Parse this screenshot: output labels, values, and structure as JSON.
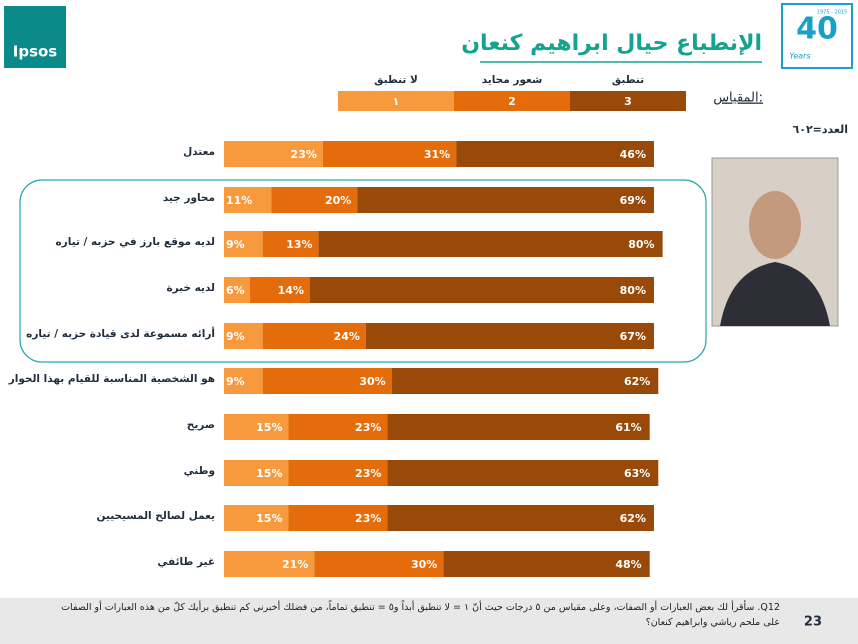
{
  "chart_data": {
    "type": "stacked-bar-horizontal",
    "title": "الإنطباع حيال ابراهيم كنعان",
    "scale_label": "المقياس:",
    "sample": "العدد=٦٠٢",
    "categories": [
      "معتدل",
      "محاور جيد",
      "لديه موقع بارز في حزبه / تياره",
      "لديه خبرة",
      "أرائه مسموعة لدى قيادة حزبه / تياره",
      "هو الشخصية المناسبة للقيام بهذا الحوار",
      "صريح",
      "وطني",
      "يعمل لصالح المسيحيين",
      "غير طائفي"
    ],
    "series": [
      {
        "name": "لا تنطبق",
        "code": "١",
        "color": "#f79a3e",
        "values": [
          23,
          11,
          9,
          6,
          9,
          9,
          15,
          15,
          15,
          21
        ],
        "value_labels": [
          "23%",
          "11%",
          "9%",
          "6%",
          "9%",
          "9%",
          "15%",
          "15%",
          "15%",
          "21%"
        ]
      },
      {
        "name": "شعور محايد",
        "code": 2,
        "color": "#e46c0a",
        "values": [
          31,
          20,
          13,
          14,
          24,
          30,
          23,
          23,
          23,
          30
        ],
        "value_labels": [
          "31%",
          "20%",
          "13%",
          "14%",
          "24%",
          "30%",
          "23%",
          "23%",
          "23%",
          "30%"
        ]
      },
      {
        "name": "تنطبق",
        "code": 3,
        "color": "#9a4a08",
        "values": [
          46,
          69,
          80,
          80,
          67,
          62,
          61,
          63,
          62,
          48
        ],
        "value_labels": [
          "46%",
          "69%",
          "80%",
          "80%",
          "67%",
          "62%",
          "61%",
          "63%",
          "62%",
          "48%"
        ]
      }
    ]
  },
  "footer": {
    "question": "Q12. سأقرأ لك بعض العبارات أو الصفات، وعلى مقياس من ٥ درجات حيث أنّ ١ = لا تنطبق أبداً و٥ = تنطبق تماماً، من فضلك أخبرني كم تنطبق برأيك كلّ من هذه العبارات أو الصفات على ملحم رياشي وابراهيم كنعان؟",
    "page": "23"
  },
  "logos": {
    "ipsos": "Ipsos",
    "anniversary": "40",
    "years": "Years",
    "span": "1975 - 2015"
  }
}
